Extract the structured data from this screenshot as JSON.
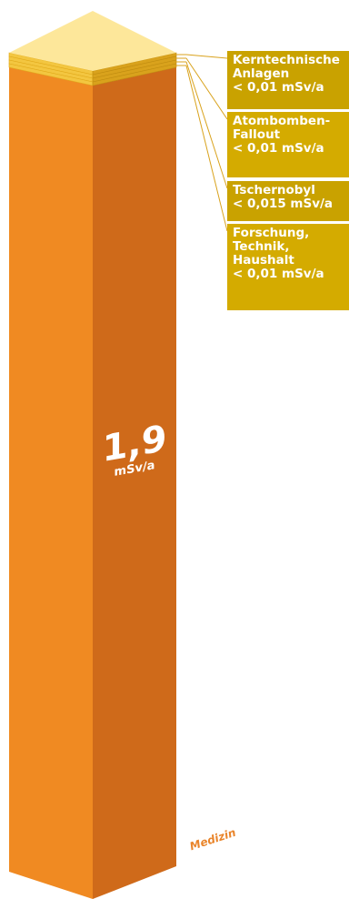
{
  "chart_data": {
    "type": "bar",
    "style": "stacked 3d column",
    "unit": "mSv/a",
    "bars": [
      {
        "category": "Medizin",
        "value": 1.9,
        "value_text": "1,9",
        "unit_text": "mSv/a",
        "color": "#f08a22",
        "side_color": "#cf6a1a"
      }
    ],
    "stack_layers": [
      {
        "name_lines": [
          "Kerntechnische",
          "Anlagen"
        ],
        "value_text": "< 0,01 mSv/a",
        "value_max": 0.01
      },
      {
        "name_lines": [
          "Atombomben-",
          "Fallout"
        ],
        "value_text": "< 0,01 mSv/a",
        "value_max": 0.01
      },
      {
        "name_lines": [
          "Tschernobyl"
        ],
        "value_text": "< 0,015 mSv/a",
        "value_max": 0.015
      },
      {
        "name_lines": [
          "Forschung,",
          "Technik,",
          "Haushalt"
        ],
        "value_text": "< 0,01 mSv/a",
        "value_max": 0.01
      }
    ],
    "colors": {
      "top_face": "#fde79a",
      "layer_front": "#f3c640",
      "layer_side": "#d9a21c",
      "label_box": "#c9a200",
      "label_box_light": "#d4ab00",
      "category_text": "#e9842a"
    }
  }
}
